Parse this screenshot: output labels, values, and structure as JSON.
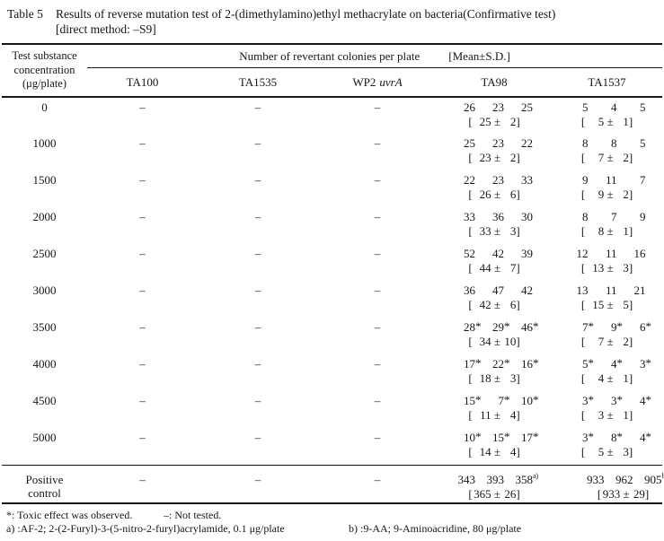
{
  "title": {
    "label": "Table 5",
    "line1": "Results of reverse mutation test of 2-(dimethylamino)ethyl methacrylate on bacteria(Confirmative test)",
    "line2": "[direct method: –S9]"
  },
  "header": {
    "col0": [
      "Test substance",
      "concentration",
      "(μg/plate)"
    ],
    "span": "Number of revertant colonies per plate",
    "mean_sd": "[Mean±S.D.]",
    "strains": [
      {
        "name": "TA100",
        "italic": ""
      },
      {
        "name": "TA1535",
        "italic": ""
      },
      {
        "name": "WP2",
        "italic": "uvrA"
      },
      {
        "name": "TA98",
        "italic": ""
      },
      {
        "name": "TA1537",
        "italic": ""
      }
    ]
  },
  "rows": [
    {
      "conc": "0",
      "conc2": "",
      "ta100": "–",
      "ta1535": "–",
      "wp2uvrA": "–",
      "ta98": {
        "counts": [
          "26",
          "23",
          "25"
        ],
        "mean": "25",
        "sd": "2",
        "sup": ""
      },
      "ta1537": {
        "counts": [
          "5",
          "4",
          "5"
        ],
        "mean": "5",
        "sd": "1",
        "sup": ""
      }
    },
    {
      "conc": "1000",
      "conc2": "",
      "ta100": "–",
      "ta1535": "–",
      "wp2uvrA": "–",
      "ta98": {
        "counts": [
          "25",
          "23",
          "22"
        ],
        "mean": "23",
        "sd": "2",
        "sup": ""
      },
      "ta1537": {
        "counts": [
          "8",
          "8",
          "5"
        ],
        "mean": "7",
        "sd": "2",
        "sup": ""
      }
    },
    {
      "conc": "1500",
      "conc2": "",
      "ta100": "–",
      "ta1535": "–",
      "wp2uvrA": "–",
      "ta98": {
        "counts": [
          "22",
          "23",
          "33"
        ],
        "mean": "26",
        "sd": "6",
        "sup": ""
      },
      "ta1537": {
        "counts": [
          "9",
          "11",
          "7"
        ],
        "mean": "9",
        "sd": "2",
        "sup": ""
      }
    },
    {
      "conc": "2000",
      "conc2": "",
      "ta100": "–",
      "ta1535": "–",
      "wp2uvrA": "–",
      "ta98": {
        "counts": [
          "33",
          "36",
          "30"
        ],
        "mean": "33",
        "sd": "3",
        "sup": ""
      },
      "ta1537": {
        "counts": [
          "8",
          "7",
          "9"
        ],
        "mean": "8",
        "sd": "1",
        "sup": ""
      }
    },
    {
      "conc": "2500",
      "conc2": "",
      "ta100": "–",
      "ta1535": "–",
      "wp2uvrA": "–",
      "ta98": {
        "counts": [
          "52",
          "42",
          "39"
        ],
        "mean": "44",
        "sd": "7",
        "sup": ""
      },
      "ta1537": {
        "counts": [
          "12",
          "11",
          "16"
        ],
        "mean": "13",
        "sd": "3",
        "sup": ""
      }
    },
    {
      "conc": "3000",
      "conc2": "",
      "ta100": "–",
      "ta1535": "–",
      "wp2uvrA": "–",
      "ta98": {
        "counts": [
          "36",
          "47",
          "42"
        ],
        "mean": "42",
        "sd": "6",
        "sup": ""
      },
      "ta1537": {
        "counts": [
          "13",
          "11",
          "21"
        ],
        "mean": "15",
        "sd": "5",
        "sup": ""
      }
    },
    {
      "conc": "3500",
      "conc2": "",
      "ta100": "–",
      "ta1535": "–",
      "wp2uvrA": "–",
      "ta98": {
        "counts": [
          "28*",
          "29*",
          "46*"
        ],
        "mean": "34",
        "sd": "10",
        "sup": ""
      },
      "ta1537": {
        "counts": [
          "7*",
          "9*",
          "6*"
        ],
        "mean": "7",
        "sd": "2",
        "sup": ""
      }
    },
    {
      "conc": "4000",
      "conc2": "",
      "ta100": "–",
      "ta1535": "–",
      "wp2uvrA": "–",
      "ta98": {
        "counts": [
          "17*",
          "22*",
          "16*"
        ],
        "mean": "18",
        "sd": "3",
        "sup": ""
      },
      "ta1537": {
        "counts": [
          "5*",
          "4*",
          "3*"
        ],
        "mean": "4",
        "sd": "1",
        "sup": ""
      }
    },
    {
      "conc": "4500",
      "conc2": "",
      "ta100": "–",
      "ta1535": "–",
      "wp2uvrA": "–",
      "ta98": {
        "counts": [
          "15*",
          "7*",
          "10*"
        ],
        "mean": "11",
        "sd": "4",
        "sup": ""
      },
      "ta1537": {
        "counts": [
          "3*",
          "3*",
          "4*"
        ],
        "mean": "3",
        "sd": "1",
        "sup": ""
      }
    },
    {
      "conc": "5000",
      "conc2": "",
      "ta100": "–",
      "ta1535": "–",
      "wp2uvrA": "–",
      "ta98": {
        "counts": [
          "10*",
          "15*",
          "17*"
        ],
        "mean": "14",
        "sd": "4",
        "sup": ""
      },
      "ta1537": {
        "counts": [
          "3*",
          "8*",
          "4*"
        ],
        "mean": "5",
        "sd": "3",
        "sup": ""
      }
    },
    {
      "conc": "Positive",
      "conc2": "control",
      "ta100": "–",
      "ta1535": "–",
      "wp2uvrA": "–",
      "ta98": {
        "counts": [
          "343",
          "393",
          "358"
        ],
        "mean": "365",
        "sd": "26",
        "sup": "a)"
      },
      "ta1537": {
        "counts": [
          "933",
          "962",
          "905"
        ],
        "mean": "933",
        "sd": "29",
        "sup": "b)"
      }
    }
  ],
  "footnotes": {
    "line1_left": "*: Toxic effect was observed.",
    "line1_right": "–: Not tested.",
    "line2_left": "a) :AF-2; 2-(2-Furyl)-3-(5-nitro-2-furyl)acrylamide, 0.1 μg/plate",
    "line2_right": "b) :9-AA; 9-Aminoacridine, 80 μg/plate"
  }
}
